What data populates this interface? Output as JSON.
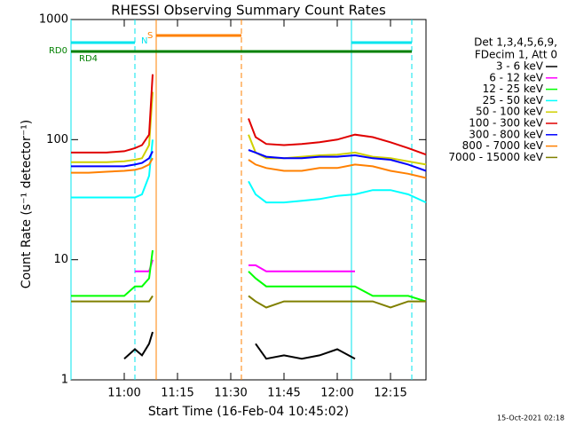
{
  "chart_data": {
    "type": "line",
    "title": "RHESSI Observing Summary Count Rates",
    "xlabel": "Start Time (16-Feb-04 10:45:02)",
    "ylabel": "Count Rate (s⁻¹ detector⁻¹)",
    "footer": "15-Oct-2021 02:18",
    "legend_header": [
      "Det 1,3,4,5,6,9,",
      "FDecim 1, Att 0"
    ],
    "log_y": true,
    "ylim": [
      1,
      1000
    ],
    "yticks": [
      1,
      10,
      100,
      1000
    ],
    "xlim": [
      "10:45",
      "12:25"
    ],
    "xticks": [
      "11:00",
      "11:15",
      "11:30",
      "11:45",
      "12:00",
      "12:15"
    ],
    "x": [
      "10:45",
      "10:50",
      "10:55",
      "11:00",
      "11:03",
      "11:05",
      "11:07",
      "11:08",
      "11:10",
      "11:35",
      "11:37",
      "11:40",
      "11:45",
      "11:50",
      "11:55",
      "12:00",
      "12:05",
      "12:10",
      "12:15",
      "12:20",
      "12:25"
    ],
    "series": [
      {
        "name": "3 - 6 keV",
        "color": "#000000",
        "values": [
          null,
          null,
          null,
          1.5,
          1.8,
          1.6,
          2,
          2.5,
          null,
          null,
          2,
          1.5,
          1.6,
          1.5,
          1.6,
          1.8,
          1.5,
          null,
          null,
          null,
          null
        ]
      },
      {
        "name": "6 - 12 keV",
        "color": "#ff00ff",
        "values": [
          null,
          null,
          null,
          null,
          8,
          8,
          8,
          10,
          null,
          9,
          9,
          8,
          8,
          8,
          8,
          8,
          8,
          null,
          null,
          null,
          null
        ]
      },
      {
        "name": "12 - 25 keV",
        "color": "#00ff00",
        "values": [
          5,
          5,
          5,
          5,
          6,
          6,
          7,
          12,
          null,
          8,
          7,
          6,
          6,
          6,
          6,
          6,
          6,
          5,
          5,
          5,
          4.5
        ]
      },
      {
        "name": "25 - 50 keV",
        "color": "#00ffff",
        "values": [
          33,
          33,
          33,
          33,
          33,
          35,
          50,
          100,
          null,
          45,
          35,
          30,
          30,
          31,
          32,
          34,
          35,
          38,
          38,
          35,
          30
        ]
      },
      {
        "name": "50 - 100 keV",
        "color": "#d0d000",
        "values": [
          65,
          65,
          65,
          66,
          68,
          70,
          90,
          250,
          null,
          110,
          78,
          70,
          70,
          72,
          74,
          75,
          78,
          72,
          70,
          66,
          62
        ]
      },
      {
        "name": "100 - 300 keV",
        "color": "#e00000",
        "values": [
          78,
          78,
          78,
          80,
          85,
          90,
          110,
          350,
          null,
          150,
          105,
          92,
          90,
          92,
          95,
          100,
          110,
          105,
          95,
          85,
          75
        ]
      },
      {
        "name": "300 - 800 keV",
        "color": "#0000ff",
        "values": [
          60,
          60,
          60,
          60,
          62,
          64,
          70,
          80,
          null,
          82,
          78,
          72,
          70,
          70,
          72,
          72,
          74,
          70,
          68,
          62,
          55
        ]
      },
      {
        "name": "800 - 7000 keV",
        "color": "#ff8000",
        "values": [
          53,
          53,
          54,
          55,
          56,
          58,
          62,
          70,
          null,
          68,
          62,
          58,
          55,
          55,
          58,
          58,
          62,
          60,
          55,
          52,
          48
        ]
      },
      {
        "name": "7000 - 15000 keV",
        "color": "#808000",
        "values": [
          4.5,
          4.5,
          4.5,
          4.5,
          4.5,
          4.5,
          4.5,
          5,
          null,
          5,
          4.5,
          4,
          4.5,
          4.5,
          4.5,
          4.5,
          4.5,
          4.5,
          4,
          4.5,
          4.5
        ]
      }
    ],
    "night": {
      "label": "N",
      "color": "#00e5ee",
      "intervals": [
        [
          "10:45",
          "11:03"
        ],
        [
          "12:04",
          "12:21"
        ]
      ]
    },
    "saa": {
      "label": "S",
      "color": "#ff8000",
      "intervals": [
        [
          "11:09",
          "11:33"
        ]
      ]
    },
    "decimation": {
      "labels": [
        "RD0",
        "RD4"
      ],
      "color": "#008000"
    }
  }
}
